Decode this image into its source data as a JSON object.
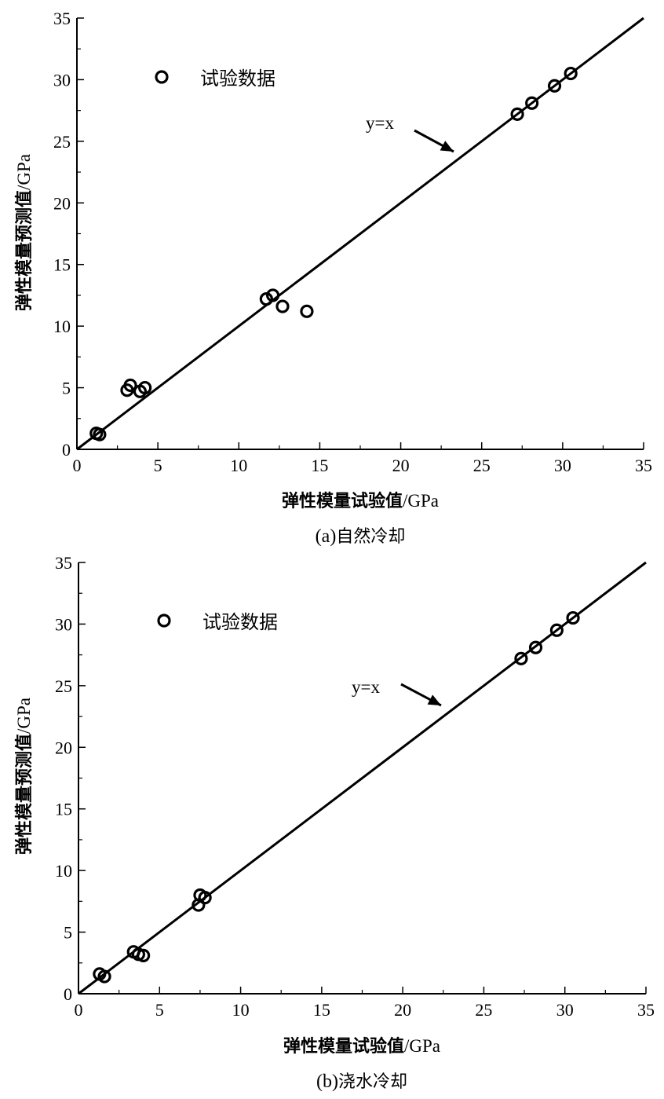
{
  "chart_data": [
    {
      "type": "scatter",
      "caption_prefix": "(a)",
      "caption_text": "自然冷却",
      "xlabel_cjk": "弹性模量试验值",
      "xlabel_unit": "/GPa",
      "ylabel_cjk": "弹性模量预测值",
      "ylabel_unit": "/GPa",
      "xlim": [
        0,
        35
      ],
      "ylim": [
        0,
        35
      ],
      "xticks": [
        0,
        5,
        10,
        15,
        20,
        25,
        30,
        35
      ],
      "yticks": [
        0,
        5,
        10,
        15,
        20,
        25,
        30,
        35
      ],
      "legend": "试验数据",
      "legend_position": "top-left",
      "reference_line_label": "y=x",
      "reference_line": {
        "slope": 1,
        "intercept": 0
      },
      "series": [
        {
          "points": [
            [
              1.2,
              1.3
            ],
            [
              1.4,
              1.2
            ],
            [
              3.1,
              4.8
            ],
            [
              3.3,
              5.2
            ],
            [
              3.9,
              4.7
            ],
            [
              4.2,
              5.0
            ],
            [
              11.7,
              12.2
            ],
            [
              12.1,
              12.5
            ],
            [
              12.7,
              11.6
            ],
            [
              14.2,
              11.2
            ],
            [
              27.2,
              27.2
            ],
            [
              28.1,
              28.1
            ],
            [
              29.5,
              29.5
            ],
            [
              30.5,
              30.5
            ]
          ]
        }
      ]
    },
    {
      "type": "scatter",
      "caption_prefix": "(b)",
      "caption_text": "浇水冷却",
      "xlabel_cjk": "弹性模量试验值",
      "xlabel_unit": "/GPa",
      "ylabel_cjk": "弹性模量预测值",
      "ylabel_unit": "/GPa",
      "xlim": [
        0,
        35
      ],
      "ylim": [
        0,
        35
      ],
      "xticks": [
        0,
        5,
        10,
        15,
        20,
        25,
        30,
        35
      ],
      "yticks": [
        0,
        5,
        10,
        15,
        20,
        25,
        30,
        35
      ],
      "legend": "试验数据",
      "legend_position": "top-left",
      "reference_line_label": "y=x",
      "reference_line": {
        "slope": 1,
        "intercept": 0
      },
      "series": [
        {
          "points": [
            [
              1.3,
              1.6
            ],
            [
              1.6,
              1.4
            ],
            [
              3.4,
              3.4
            ],
            [
              3.7,
              3.2
            ],
            [
              4.0,
              3.1
            ],
            [
              7.4,
              7.2
            ],
            [
              7.5,
              8.0
            ],
            [
              7.8,
              7.8
            ],
            [
              27.3,
              27.2
            ],
            [
              28.2,
              28.1
            ],
            [
              29.5,
              29.5
            ],
            [
              30.5,
              30.5
            ]
          ]
        }
      ]
    }
  ]
}
